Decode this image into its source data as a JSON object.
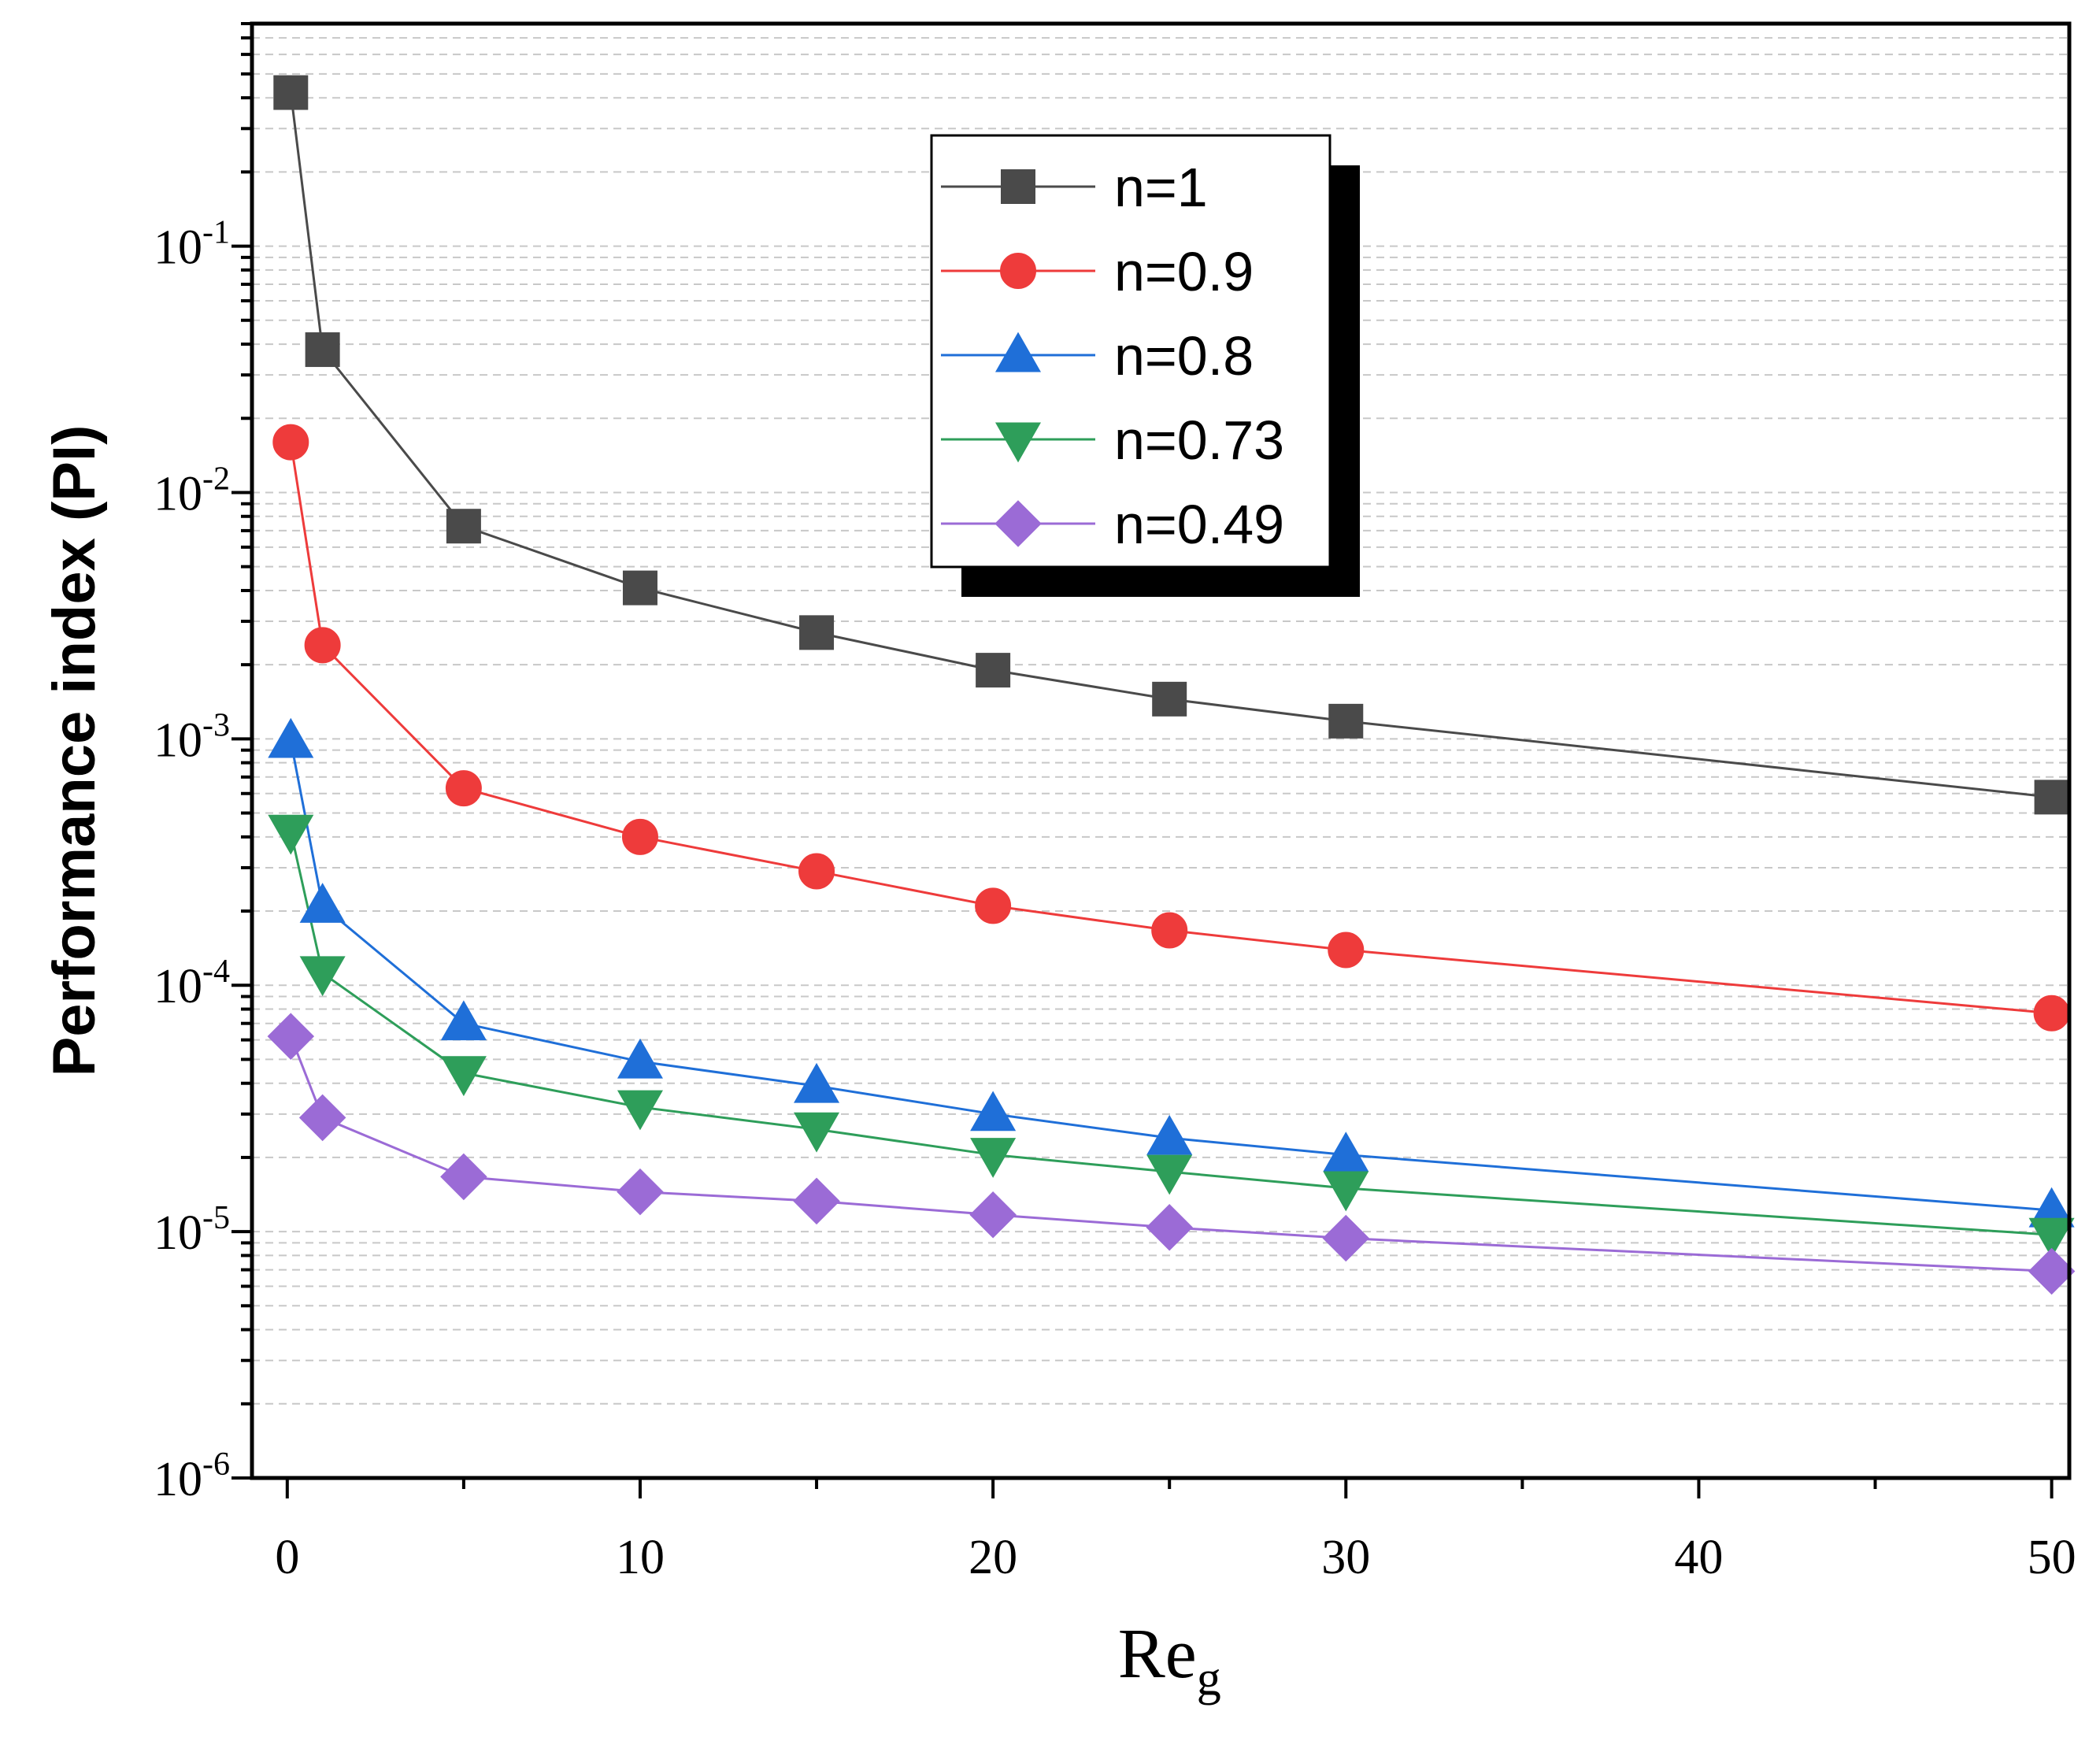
{
  "chart_data": {
    "type": "line",
    "xlabel": "Re",
    "xlabel_sub": "g",
    "ylabel": "Performance index (PI)",
    "x": [
      0.1,
      1,
      5,
      10,
      15,
      20,
      25,
      30,
      50
    ],
    "xlim": [
      -1,
      50.5
    ],
    "ylim": [
      1e-06,
      0.8
    ],
    "yscale": "log",
    "x_ticks": [
      "0",
      "10",
      "20",
      "30",
      "40",
      "50"
    ],
    "y_ticks": [
      {
        "base": "10",
        "exp": "-6"
      },
      {
        "base": "10",
        "exp": "-5"
      },
      {
        "base": "10",
        "exp": "-4"
      },
      {
        "base": "10",
        "exp": "-3"
      },
      {
        "base": "10",
        "exp": "-2"
      },
      {
        "base": "10",
        "exp": "-1"
      }
    ],
    "grid": "horizontal dashed (log minor)",
    "legend_position": "top-center",
    "series": [
      {
        "name": "n=1",
        "color": "#4a4a4a",
        "marker": "square",
        "values": [
          0.42,
          0.038,
          0.0073,
          0.0041,
          0.0027,
          0.0019,
          0.00145,
          0.00118,
          0.00058
        ]
      },
      {
        "name": "n=0.9",
        "color": "#ee3b3b",
        "marker": "circle",
        "values": [
          0.016,
          0.0024,
          0.00063,
          0.0004,
          0.00029,
          0.00021,
          0.000167,
          0.000139,
          7.7e-05
        ]
      },
      {
        "name": "n=0.8",
        "color": "#1f6fd8",
        "marker": "triangle-up",
        "values": [
          0.00098,
          0.00021,
          7e-05,
          4.9e-05,
          3.9e-05,
          3e-05,
          2.4e-05,
          2.05e-05,
          1.22e-05
        ]
      },
      {
        "name": "n=0.73",
        "color": "#2e9e5a",
        "marker": "triangle-down",
        "values": [
          0.00042,
          0.000112,
          4.4e-05,
          3.2e-05,
          2.6e-05,
          2.05e-05,
          1.75e-05,
          1.5e-05,
          9.7e-06
        ]
      },
      {
        "name": "n=0.49",
        "color": "#9b6bd6",
        "marker": "diamond",
        "values": [
          6.2e-05,
          2.9e-05,
          1.67e-05,
          1.45e-05,
          1.33e-05,
          1.17e-05,
          1.04e-05,
          9.4e-06,
          6.9e-06
        ]
      }
    ]
  }
}
